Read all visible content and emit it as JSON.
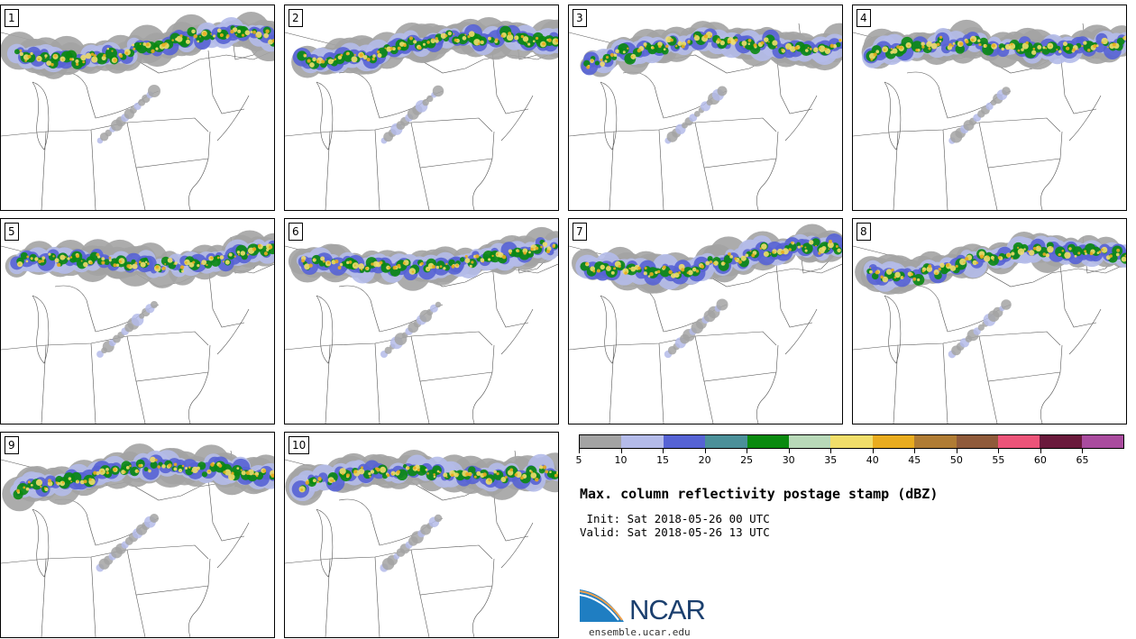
{
  "panels": [
    {
      "label": "1"
    },
    {
      "label": "2"
    },
    {
      "label": "3"
    },
    {
      "label": "4"
    },
    {
      "label": "5"
    },
    {
      "label": "6"
    },
    {
      "label": "7"
    },
    {
      "label": "8"
    },
    {
      "label": "9"
    },
    {
      "label": "10"
    }
  ],
  "colorbar": {
    "colors": [
      "#a3a3a3",
      "#b4bbe9",
      "#5663d4",
      "#4b9099",
      "#0a8a0f",
      "#b8d9b8",
      "#f1de6a",
      "#e9ac1f",
      "#b07c34",
      "#8f5a3a",
      "#ec5479",
      "#6a1a3c",
      "#a94b9e"
    ],
    "ticks": [
      "5",
      "10",
      "15",
      "20",
      "25",
      "30",
      "35",
      "40",
      "45",
      "50",
      "55",
      "60",
      "65"
    ]
  },
  "title": "Max. column reflectivity postage stamp (dBZ)",
  "init": " Init: Sat 2018-05-26 00 UTC",
  "valid": "Valid: Sat 2018-05-26 13 UTC",
  "logo": {
    "text": "NCAR",
    "url": "ensemble.ucar.edu",
    "colors": {
      "blue": "#1f7ec2",
      "navy": "#1b3f6e",
      "orange": "#f0a04b"
    }
  }
}
